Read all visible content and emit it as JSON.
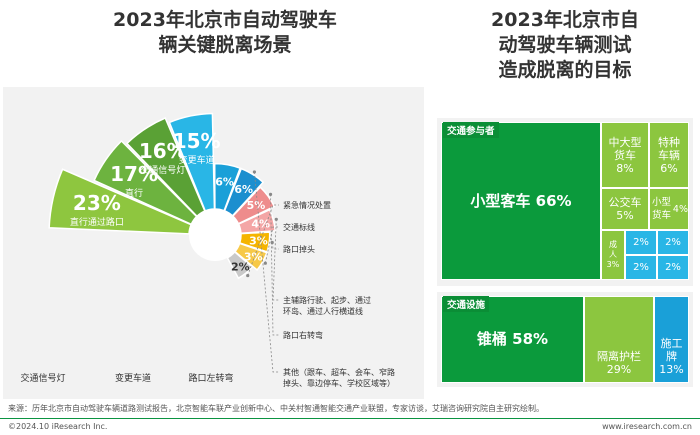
{
  "left_title_lines": [
    "2023年北京市自动驾驶车",
    "辆关键脱离场景"
  ],
  "right_title_lines": [
    "2023年北京市自",
    "动驾驶车辆测试",
    "造成脱离的目标"
  ],
  "chart_data": [
    {
      "type": "rose",
      "slices": [
        {
          "label": "直行通过路口",
          "value": 23,
          "display": "23%",
          "color": "#8ec63f"
        },
        {
          "label": "直行",
          "value": 17,
          "display": "17%",
          "color": "#6db33f"
        },
        {
          "label": "交通信号灯",
          "value": 16,
          "display": "16%",
          "color": "#5aa135"
        },
        {
          "label": "变更车道",
          "value": 15,
          "display": "15%",
          "color": "#29b6e6"
        },
        {
          "label": "路口左转弯",
          "value": 6,
          "display": "6%",
          "color": "#1aa0d8"
        },
        {
          "label": "其他（跟车、超车、会车、窄路掉头、靠边停车、学校区域等）",
          "label_lines": [
            "其他（跟车、超车、会车、窄路",
            "掉头、靠边停车、学校区域等）"
          ],
          "value": 6,
          "display": "6%",
          "color": "#1c8fcf"
        },
        {
          "label": "路口右转弯",
          "value": 5,
          "display": "5%",
          "color": "#ee8c8c"
        },
        {
          "label": "主辅路行驶、起步、通过环岛、通过人行横道线",
          "label_lines": [
            "主辅路行驶、起步、通过",
            "环岛、通过人行横道线"
          ],
          "value": 4,
          "display": "4%",
          "color": "#f4a6a6"
        },
        {
          "label": "路口掉头",
          "value": 3,
          "display": "3%",
          "color": "#f5b400"
        },
        {
          "label": "交通标线",
          "value": 3,
          "display": "3%",
          "color": "#f7c948"
        },
        {
          "label": "紧急情况处置",
          "value": 2,
          "display": "2%",
          "color": "#c9c9c9"
        }
      ]
    },
    {
      "type": "treemap",
      "groups": [
        {
          "name": "交通参与者",
          "items": [
            {
              "label": "小型客车",
              "display": "66%"
            },
            {
              "label": "中大型货车",
              "display": "8%"
            },
            {
              "label": "特种车辆",
              "display": "6%"
            },
            {
              "label": "公交车",
              "display": "5%"
            },
            {
              "label": "小型货车",
              "display": "4%"
            },
            {
              "label": "成人",
              "display": "3%"
            },
            {
              "label": "",
              "display": "2%"
            },
            {
              "label": "",
              "display": "2%"
            },
            {
              "label": "",
              "display": "2%"
            },
            {
              "label": "",
              "display": "2%"
            }
          ]
        },
        {
          "name": "交通设施",
          "items": [
            {
              "label": "锥桶",
              "display": "58%"
            },
            {
              "label": "隔离护栏",
              "display": "29%"
            },
            {
              "label": "施工牌",
              "display": "13%"
            }
          ]
        }
      ]
    }
  ],
  "footer": {
    "source": "来源：历年北京市自动驾驶车辆道路测试报告，北京智能车联产业创新中心、中关村智通智能交通产业联盟，专家访谈，艾瑞咨询研究院自主研究绘制。",
    "copyright": "©2024.10 iResearch Inc.",
    "website": "www.iresearch.com.cn"
  }
}
